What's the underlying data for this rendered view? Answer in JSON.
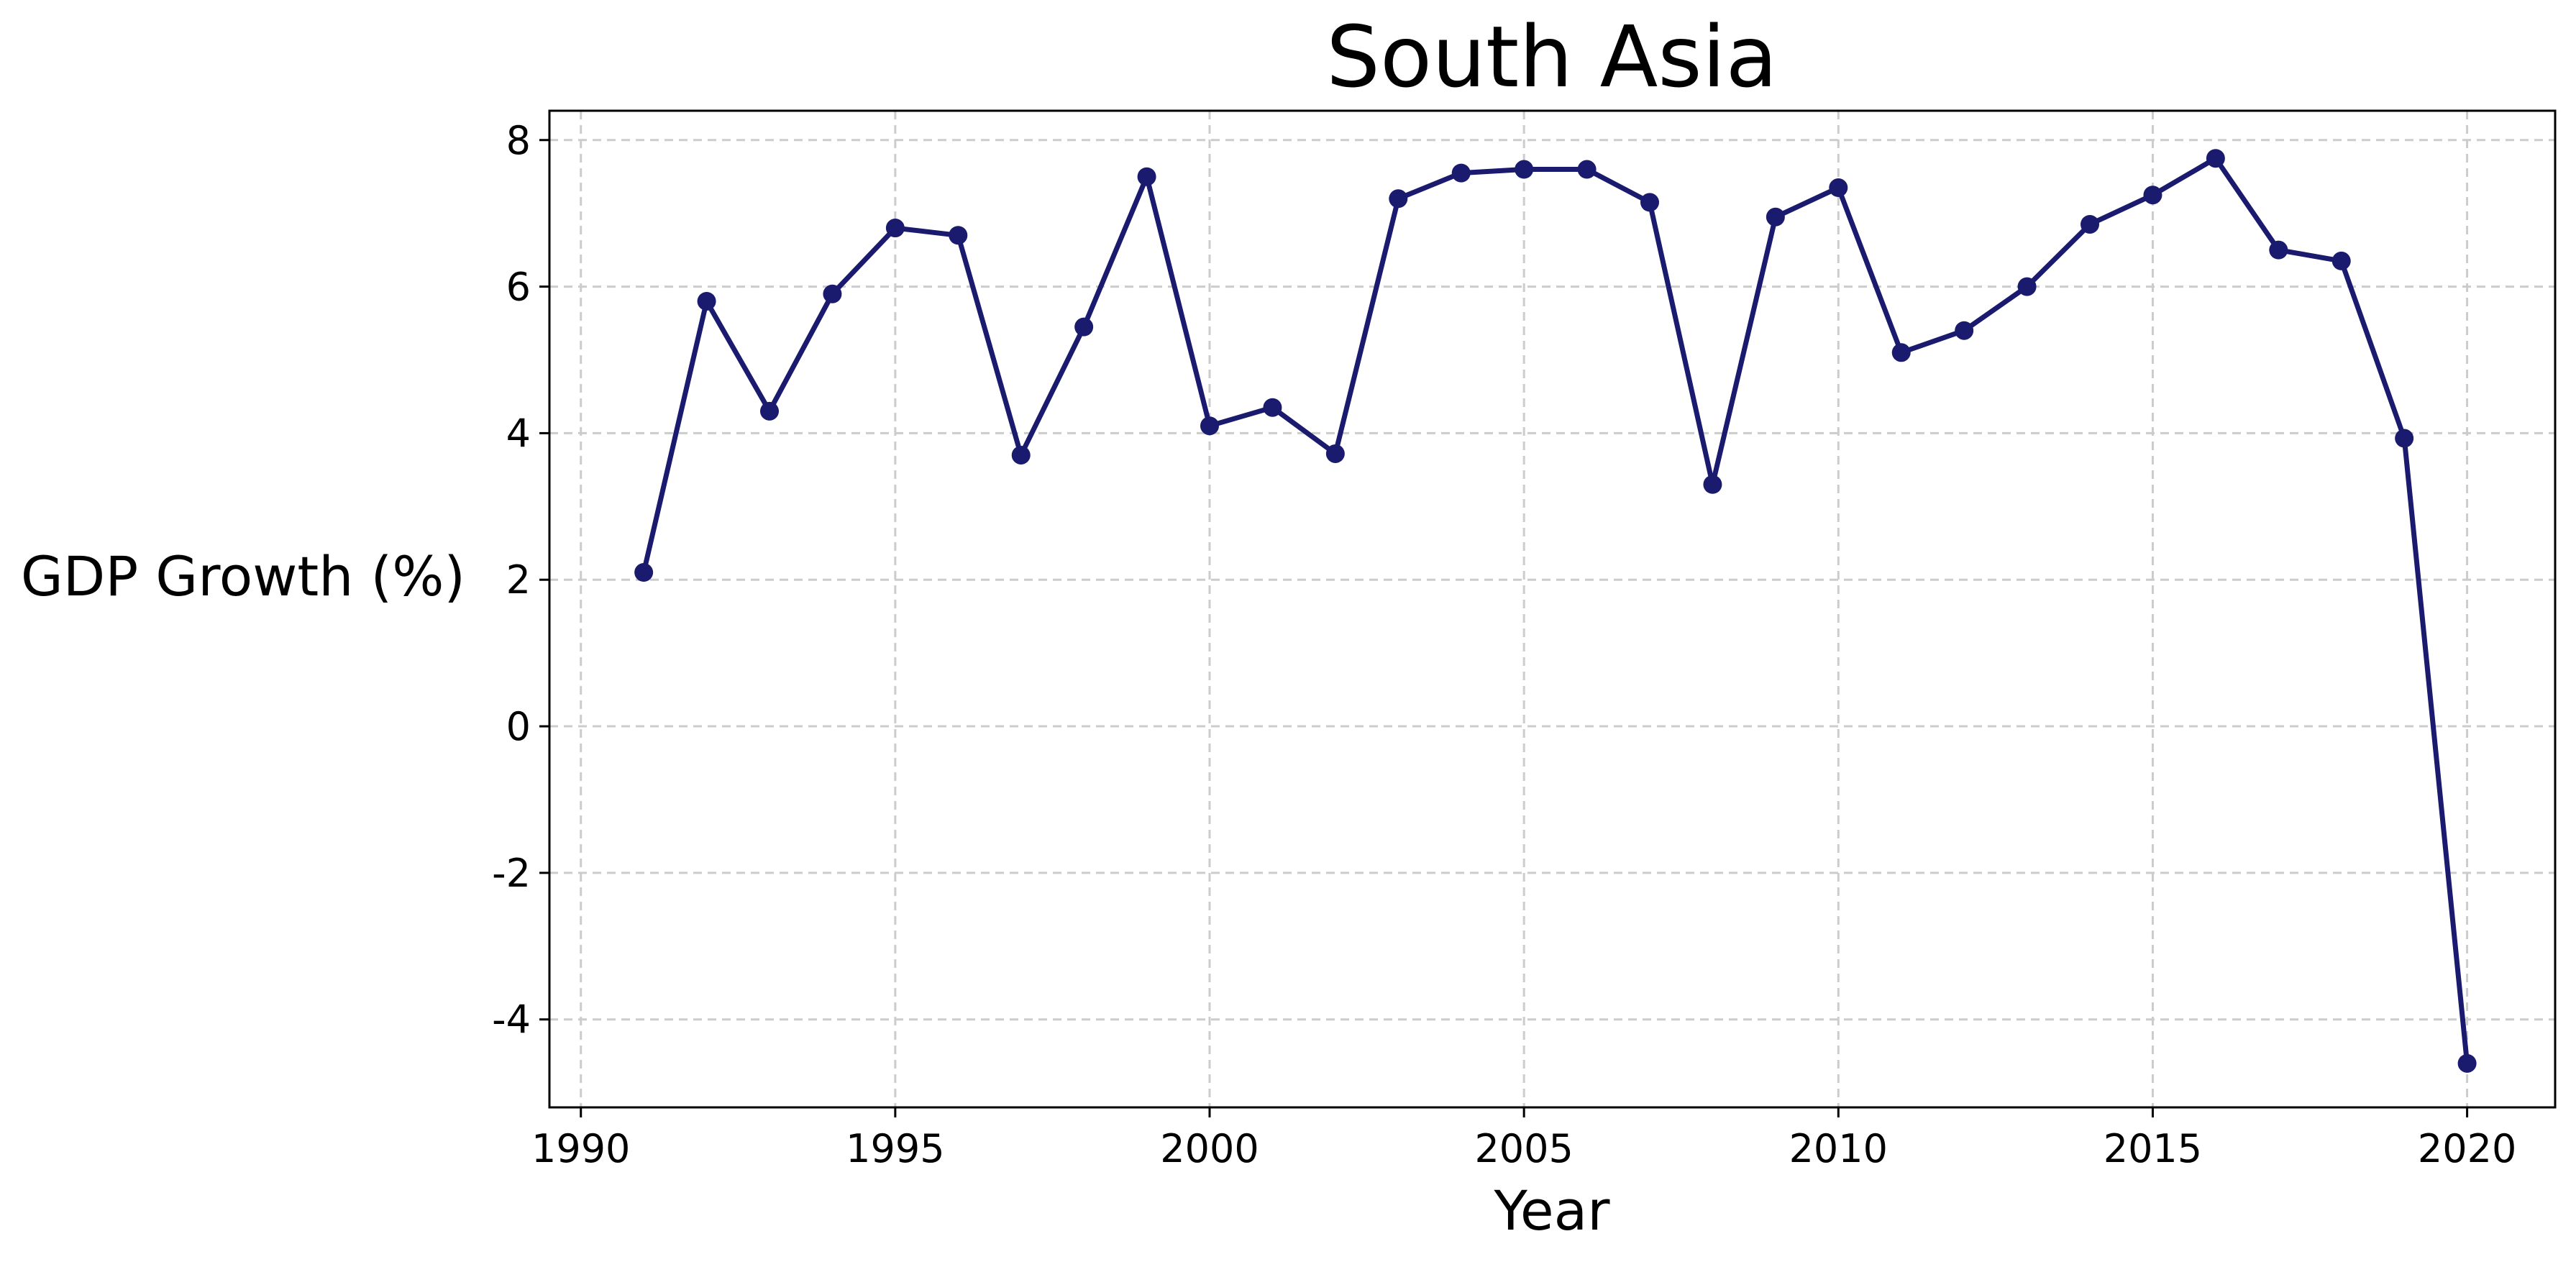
{
  "chart_data": {
    "type": "line",
    "title": "South Asia",
    "xlabel": "Year",
    "ylabel": "GDP Growth (%)",
    "xlim": [
      1989.5,
      2021.4
    ],
    "ylim": [
      -5.2,
      8.4
    ],
    "xticks": [
      1990,
      1995,
      2000,
      2005,
      2010,
      2015,
      2020
    ],
    "yticks": [
      -4,
      -2,
      0,
      2,
      4,
      6,
      8
    ],
    "grid": true,
    "legend": "none",
    "color": "#1a1a6e",
    "x": [
      1991,
      1992,
      1993,
      1994,
      1995,
      1996,
      1997,
      1998,
      1999,
      2000,
      2001,
      2002,
      2003,
      2004,
      2005,
      2006,
      2007,
      2008,
      2009,
      2010,
      2011,
      2012,
      2013,
      2014,
      2015,
      2016,
      2017,
      2018,
      2019,
      2020
    ],
    "series": [
      {
        "values": [
          2.1,
          5.8,
          4.3,
          5.9,
          6.8,
          6.7,
          3.7,
          5.45,
          7.5,
          4.1,
          4.35,
          3.72,
          7.2,
          7.55,
          7.6,
          7.6,
          7.15,
          3.3,
          6.95,
          7.35,
          5.1,
          5.4,
          6.0,
          6.85,
          7.25,
          7.75,
          6.5,
          6.35,
          3.93,
          -4.6
        ]
      }
    ]
  }
}
